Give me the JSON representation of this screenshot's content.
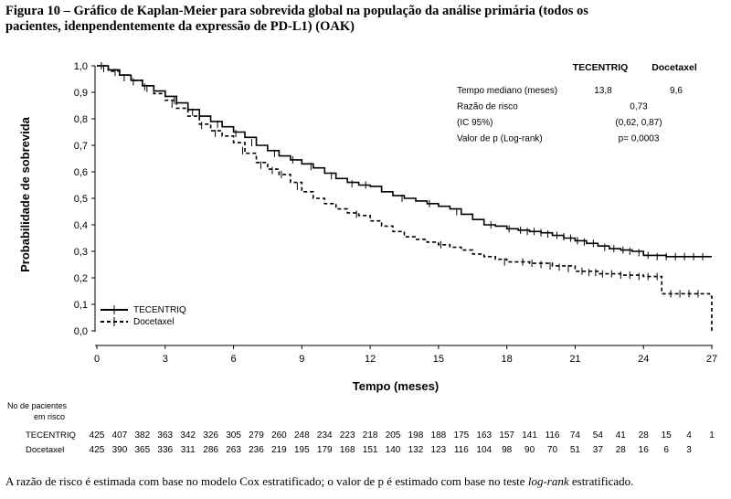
{
  "caption": "Figura 10 – Gráfico de Kaplan-Meier para sobrevida global na população da análise primária (todos os pacientes, idenpendentemente da expressão de PD-L1) (OAK)",
  "footnote": {
    "before": "A razão de risco é estimada com base no modelo Cox estratificado; o valor de p é estimado com base no teste ",
    "italic": "log-rank",
    "after": " estratificado."
  },
  "chart_data": {
    "type": "line",
    "title": "",
    "xlabel": "Tempo (meses)",
    "ylabel": "Probabilidade de sobrevida",
    "xlim": [
      0,
      27
    ],
    "ylim": [
      0,
      1.0
    ],
    "x_ticks": [
      0,
      3,
      6,
      9,
      12,
      15,
      18,
      21,
      24,
      27
    ],
    "y_ticks": [
      "0,0",
      "0,1",
      "0,2",
      "0,3",
      "0,4",
      "0,5",
      "0,6",
      "0,7",
      "0,8",
      "0,9",
      "1,0"
    ],
    "grid": false,
    "legend_position": "bottom-left",
    "series": [
      {
        "name": "TECENTRIQ",
        "style": "solid",
        "color": "#000000",
        "points": [
          [
            0,
            1.0
          ],
          [
            0.5,
            0.985
          ],
          [
            1,
            0.965
          ],
          [
            1.5,
            0.945
          ],
          [
            2,
            0.925
          ],
          [
            2.5,
            0.905
          ],
          [
            3,
            0.885
          ],
          [
            3.5,
            0.86
          ],
          [
            4,
            0.835
          ],
          [
            4.5,
            0.81
          ],
          [
            5,
            0.79
          ],
          [
            5.5,
            0.77
          ],
          [
            6,
            0.75
          ],
          [
            6.5,
            0.73
          ],
          [
            7,
            0.7
          ],
          [
            7.5,
            0.68
          ],
          [
            8,
            0.66
          ],
          [
            8.5,
            0.645
          ],
          [
            9,
            0.63
          ],
          [
            9.5,
            0.615
          ],
          [
            10,
            0.595
          ],
          [
            10.5,
            0.575
          ],
          [
            11,
            0.56
          ],
          [
            11.5,
            0.55
          ],
          [
            12,
            0.545
          ],
          [
            12.5,
            0.525
          ],
          [
            13,
            0.51
          ],
          [
            13.5,
            0.5
          ],
          [
            14,
            0.49
          ],
          [
            14.5,
            0.48
          ],
          [
            15,
            0.47
          ],
          [
            15.5,
            0.46
          ],
          [
            16,
            0.44
          ],
          [
            16.5,
            0.42
          ],
          [
            17,
            0.4
          ],
          [
            17.5,
            0.395
          ],
          [
            18,
            0.385
          ],
          [
            18.5,
            0.38
          ],
          [
            19,
            0.375
          ],
          [
            19.5,
            0.37
          ],
          [
            20,
            0.36
          ],
          [
            20.5,
            0.35
          ],
          [
            21,
            0.34
          ],
          [
            21.5,
            0.33
          ],
          [
            22,
            0.32
          ],
          [
            22.5,
            0.31
          ],
          [
            23,
            0.305
          ],
          [
            23.5,
            0.3
          ],
          [
            24,
            0.285
          ],
          [
            25,
            0.28
          ],
          [
            27,
            0.28
          ]
        ],
        "censor_marks": [
          [
            0.2,
            1.0
          ],
          [
            0.8,
            0.975
          ],
          [
            1.6,
            0.94
          ],
          [
            2.2,
            0.915
          ],
          [
            3.4,
            0.87
          ],
          [
            4.2,
            0.825
          ],
          [
            5.3,
            0.78
          ],
          [
            6.1,
            0.745
          ],
          [
            6.8,
            0.71
          ],
          [
            7.8,
            0.67
          ],
          [
            8.6,
            0.645
          ],
          [
            9.4,
            0.62
          ],
          [
            10.3,
            0.585
          ],
          [
            11.2,
            0.555
          ],
          [
            11.8,
            0.55
          ],
          [
            13.4,
            0.5
          ],
          [
            14.6,
            0.48
          ],
          [
            15.8,
            0.45
          ],
          [
            17.3,
            0.4
          ],
          [
            18.1,
            0.385
          ],
          [
            18.6,
            0.38
          ],
          [
            18.9,
            0.375
          ],
          [
            19.2,
            0.375
          ],
          [
            19.5,
            0.37
          ],
          [
            19.8,
            0.365
          ],
          [
            20.2,
            0.36
          ],
          [
            20.5,
            0.355
          ],
          [
            20.8,
            0.35
          ],
          [
            21.1,
            0.34
          ],
          [
            21.4,
            0.335
          ],
          [
            21.8,
            0.33
          ],
          [
            22.3,
            0.315
          ],
          [
            22.7,
            0.31
          ],
          [
            23.1,
            0.305
          ],
          [
            23.4,
            0.3
          ],
          [
            23.8,
            0.295
          ],
          [
            24.2,
            0.285
          ],
          [
            24.6,
            0.28
          ],
          [
            25.0,
            0.28
          ],
          [
            25.4,
            0.28
          ],
          [
            25.8,
            0.28
          ],
          [
            26.2,
            0.28
          ],
          [
            26.6,
            0.28
          ]
        ]
      },
      {
        "name": "Docetaxel",
        "style": "dashed",
        "color": "#000000",
        "points": [
          [
            0,
            1.0
          ],
          [
            0.5,
            0.98
          ],
          [
            1,
            0.965
          ],
          [
            1.5,
            0.945
          ],
          [
            2,
            0.925
          ],
          [
            2.5,
            0.895
          ],
          [
            3,
            0.87
          ],
          [
            3.5,
            0.84
          ],
          [
            4,
            0.81
          ],
          [
            4.5,
            0.78
          ],
          [
            5,
            0.755
          ],
          [
            5.5,
            0.735
          ],
          [
            6,
            0.71
          ],
          [
            6.5,
            0.67
          ],
          [
            7,
            0.635
          ],
          [
            7.5,
            0.61
          ],
          [
            8,
            0.59
          ],
          [
            8.5,
            0.56
          ],
          [
            9,
            0.525
          ],
          [
            9.5,
            0.5
          ],
          [
            10,
            0.48
          ],
          [
            10.5,
            0.46
          ],
          [
            11,
            0.445
          ],
          [
            11.5,
            0.435
          ],
          [
            12,
            0.415
          ],
          [
            12.5,
            0.395
          ],
          [
            13,
            0.375
          ],
          [
            13.5,
            0.355
          ],
          [
            14,
            0.345
          ],
          [
            14.5,
            0.335
          ],
          [
            15,
            0.325
          ],
          [
            15.5,
            0.315
          ],
          [
            16,
            0.305
          ],
          [
            16.5,
            0.29
          ],
          [
            17,
            0.28
          ],
          [
            17.5,
            0.27
          ],
          [
            18,
            0.26
          ],
          [
            19,
            0.255
          ],
          [
            20,
            0.245
          ],
          [
            21,
            0.225
          ],
          [
            22,
            0.215
          ],
          [
            23,
            0.21
          ],
          [
            24,
            0.205
          ],
          [
            24.8,
            0.14
          ],
          [
            26.5,
            0.14
          ],
          [
            26.9,
            0.13
          ],
          [
            27,
            0.0
          ]
        ],
        "censor_marks": [
          [
            0.3,
            0.99
          ],
          [
            1.2,
            0.955
          ],
          [
            2.1,
            0.92
          ],
          [
            3.3,
            0.855
          ],
          [
            4.6,
            0.775
          ],
          [
            5.2,
            0.745
          ],
          [
            6.4,
            0.68
          ],
          [
            7.2,
            0.625
          ],
          [
            7.7,
            0.605
          ],
          [
            8.1,
            0.59
          ],
          [
            8.8,
            0.545
          ],
          [
            11.4,
            0.44
          ],
          [
            15.1,
            0.325
          ],
          [
            17.9,
            0.26
          ],
          [
            18.7,
            0.26
          ],
          [
            19.1,
            0.255
          ],
          [
            19.5,
            0.25
          ],
          [
            19.9,
            0.245
          ],
          [
            20.3,
            0.24
          ],
          [
            20.7,
            0.235
          ],
          [
            21.3,
            0.225
          ],
          [
            21.6,
            0.22
          ],
          [
            21.9,
            0.22
          ],
          [
            22.2,
            0.215
          ],
          [
            22.6,
            0.215
          ],
          [
            23.0,
            0.21
          ],
          [
            23.4,
            0.21
          ],
          [
            23.8,
            0.205
          ],
          [
            24.2,
            0.205
          ],
          [
            24.6,
            0.205
          ],
          [
            25.2,
            0.14
          ],
          [
            25.6,
            0.14
          ],
          [
            26.0,
            0.14
          ],
          [
            26.4,
            0.14
          ]
        ]
      }
    ],
    "stats": {
      "col_headers": [
        "TECENTRIQ",
        "Docetaxel"
      ],
      "rows": [
        {
          "label": "Tempo mediano (meses)",
          "a": "13,8",
          "b": "9,6"
        },
        {
          "label": "Razão de risco",
          "center": "0,73"
        },
        {
          "label": "(IC 95%)",
          "center": "(0,62, 0,87)"
        },
        {
          "label": "Valor de p (Log-rank)",
          "center": "p= 0,0003"
        }
      ]
    },
    "at_risk": {
      "label_line1": "No de pacientes",
      "label_line2": "em risco",
      "rows": [
        {
          "name": "TECENTRIQ",
          "values": [
            "425",
            "407",
            "382",
            "363",
            "342",
            "326",
            "305",
            "279",
            "260",
            "248",
            "234",
            "223",
            "218",
            "205",
            "198",
            "188",
            "175",
            "163",
            "157",
            "141",
            "116",
            "74",
            "54",
            "41",
            "28",
            "15",
            "4",
            "1"
          ]
        },
        {
          "name": "Docetaxel",
          "values": [
            "425",
            "390",
            "365",
            "336",
            "311",
            "286",
            "263",
            "236",
            "219",
            "195",
            "179",
            "168",
            "151",
            "140",
            "132",
            "123",
            "116",
            "104",
            "98",
            "90",
            "70",
            "51",
            "37",
            "28",
            "16",
            "6",
            "3",
            ""
          ]
        }
      ]
    }
  }
}
